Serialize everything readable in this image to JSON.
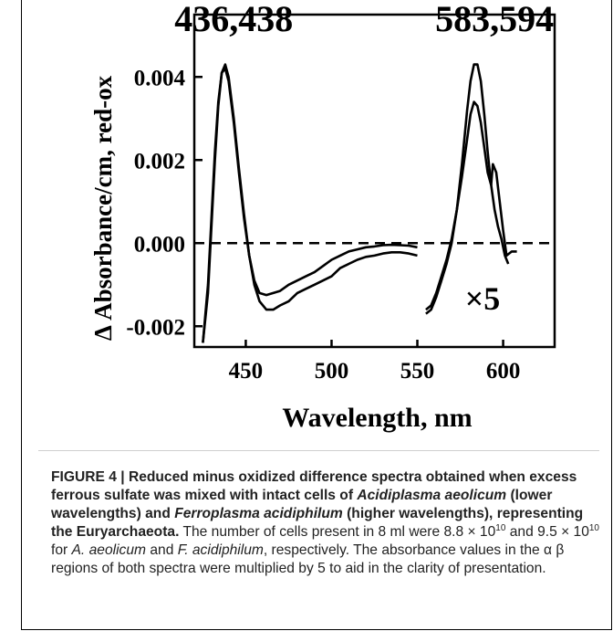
{
  "chart_data": {
    "type": "line",
    "title": "",
    "xlabel": "Wavelength, nm",
    "ylabel": "Δ Absorbance/cm, red-ox",
    "xlim": [
      420,
      630
    ],
    "ylim": [
      -0.0025,
      0.0055
    ],
    "xticks": [
      450,
      500,
      550,
      600
    ],
    "xtick_labels": [
      "450",
      "500",
      "550",
      "600"
    ],
    "yticks": [
      0.004,
      0.002,
      0.0,
      -0.002
    ],
    "ytick_labels": [
      "0.004",
      "0.002",
      "0.000",
      "-0.002"
    ],
    "baseline": {
      "y": 0.0,
      "style": "dashed"
    },
    "annotations": [
      {
        "text": "436,438",
        "x": 443,
        "y": 0.0051
      },
      {
        "text": "583,594",
        "x": 595,
        "y": 0.0051
      },
      {
        "text": "×5",
        "x": 588,
        "y": -0.0016
      }
    ],
    "series": [
      {
        "x": [
          425,
          428,
          430,
          432,
          434,
          436,
          438,
          440,
          443,
          446,
          449,
          452,
          455,
          458,
          462,
          466,
          470,
          475,
          480,
          485,
          490,
          495,
          500,
          505,
          510,
          515,
          520,
          525,
          530,
          535,
          540,
          545,
          550
        ],
        "y": [
          -0.0024,
          -0.001,
          0.0006,
          0.0022,
          0.0034,
          0.0041,
          0.0042,
          0.0039,
          0.0029,
          0.0017,
          0.0006,
          -0.0003,
          -0.0009,
          -0.0012,
          -0.00125,
          -0.0012,
          -0.00115,
          -0.001,
          -0.0009,
          -0.0008,
          -0.0007,
          -0.00055,
          -0.0004,
          -0.0003,
          -0.0002,
          -0.00015,
          -0.0001,
          -8e-05,
          -5e-05,
          -4e-05,
          -5e-05,
          -6e-05,
          -0.0001
        ],
        "line_color": "#000000"
      },
      {
        "x": [
          425,
          428,
          430,
          432,
          434,
          436,
          438,
          440,
          443,
          446,
          449,
          452,
          455,
          458,
          462,
          466,
          470,
          475,
          480,
          485,
          490,
          495,
          500,
          505,
          510,
          515,
          520,
          525,
          530,
          535,
          540,
          545,
          550
        ],
        "y": [
          -0.0024,
          -0.0012,
          0.0004,
          0.002,
          0.0033,
          0.0041,
          0.0043,
          0.004,
          0.003,
          0.0018,
          0.0007,
          -0.0003,
          -0.001,
          -0.0014,
          -0.0016,
          -0.0016,
          -0.0015,
          -0.0014,
          -0.0012,
          -0.0011,
          -0.001,
          -0.0009,
          -0.0008,
          -0.0006,
          -0.0005,
          -0.0004,
          -0.00033,
          -0.0003,
          -0.00025,
          -0.00022,
          -0.00022,
          -0.00025,
          -0.0003
        ],
        "line_color": "#000000"
      },
      {
        "x": [
          555,
          558,
          561,
          564,
          567,
          570,
          573,
          576,
          579,
          581,
          583,
          585,
          587,
          589,
          591,
          593,
          594,
          596,
          598,
          600,
          602,
          605,
          608
        ],
        "y": [
          -0.0016,
          -0.0015,
          -0.0012,
          -0.0008,
          -0.0004,
          0.0001,
          0.0008,
          0.0016,
          0.0025,
          0.0031,
          0.0034,
          0.0033,
          0.0029,
          0.0023,
          0.0017,
          0.0014,
          0.0019,
          0.0017,
          0.001,
          0.0003,
          -0.0003,
          -0.0002,
          -0.0002
        ],
        "line_color": "#000000"
      },
      {
        "x": [
          555,
          558,
          561,
          564,
          567,
          570,
          573,
          576,
          579,
          581,
          583,
          585,
          587,
          589,
          591,
          593,
          595,
          597,
          599,
          601,
          603
        ],
        "y": [
          -0.0017,
          -0.0016,
          -0.0013,
          -0.0009,
          -0.0005,
          0.0,
          0.0008,
          0.0019,
          0.0032,
          0.0039,
          0.0043,
          0.0043,
          0.0039,
          0.0031,
          0.0022,
          0.0014,
          0.0008,
          0.0004,
          0.0001,
          -0.0003,
          -0.0005
        ],
        "line_color": "#000000"
      }
    ],
    "legend": "none",
    "grid": false
  },
  "caption": {
    "head": "FIGURE 4 | Reduced minus oxidized difference spectra obtained when excess ferrous sulfate was mixed with intact cells of ",
    "species1": "Acidiplasma aeolicum",
    "mid1": " (lower wavelengths) and ",
    "species2": "Ferroplasma acidiphilum",
    "mid2": " (higher wavelengths), representing the Euryarchaeota.",
    "body1": " The number of cells present in 8 ml were 8.8 × 10",
    "exp1": "10",
    "body2": " and 9.5 × 10",
    "exp2": "10",
    "body3": " for ",
    "abbr1": "A. aeolicum",
    "body4": " and ",
    "abbr2": "F. acidiphilum",
    "body5": ", respectively. The absorbance values in the α β regions of both spectra were multiplied by 5 to aid in the clarity of presentation."
  }
}
